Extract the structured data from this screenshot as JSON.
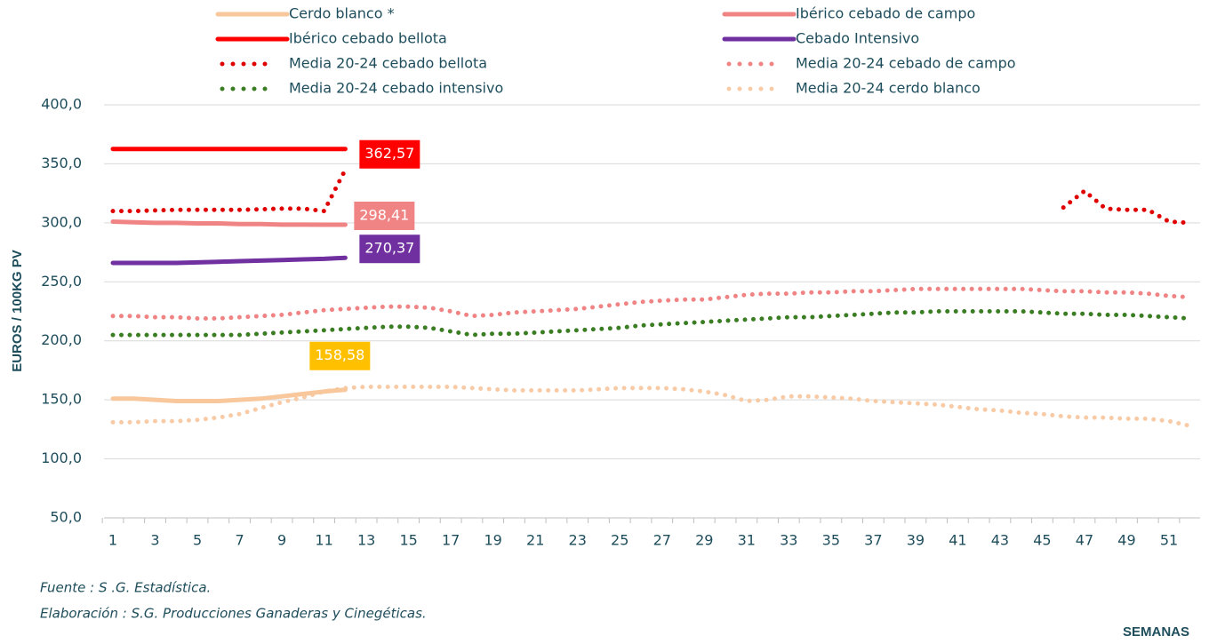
{
  "chart_data": {
    "type": "line",
    "y_label": "EUROS / 100KG PV",
    "x_label": "SEMANAS",
    "source": "Fuente :  S .G. Estadística.",
    "credit": "Elaboración : S.G. Producciones Ganaderas y Cinegéticas.",
    "categories": [
      1,
      null,
      3,
      null,
      5,
      null,
      7,
      null,
      9,
      null,
      11,
      null,
      13,
      null,
      15,
      null,
      17,
      null,
      19,
      null,
      21,
      null,
      23,
      null,
      25,
      null,
      27,
      null,
      29,
      null,
      31,
      null,
      33,
      null,
      35,
      null,
      37,
      null,
      39,
      null,
      41,
      null,
      43,
      null,
      45,
      null,
      47,
      null,
      49,
      null,
      51,
      null
    ],
    "ylim": [
      50,
      400
    ],
    "yticks": [
      {
        "value": 50,
        "label": "50,0"
      },
      {
        "value": 100,
        "label": "100,0"
      },
      {
        "value": 150,
        "label": "150,0"
      },
      {
        "value": 200,
        "label": "200,0"
      },
      {
        "value": 250,
        "label": "250,0"
      },
      {
        "value": 300,
        "label": "300,0"
      },
      {
        "value": 350,
        "label": "350,0"
      },
      {
        "value": 400,
        "label": "400,0"
      }
    ],
    "grid": true,
    "series": [
      {
        "name": "Cerdo blanco *",
        "color": "#f8c79c",
        "style": "solid",
        "label_color": "#ffc000",
        "values": [
          151,
          151,
          150,
          149,
          149,
          149,
          150,
          151,
          153,
          155,
          157,
          158.58,
          null,
          null,
          null,
          null,
          null,
          null,
          null,
          null,
          null,
          null,
          null,
          null,
          null,
          null,
          null,
          null,
          null,
          null,
          null,
          null,
          null,
          null,
          null,
          null,
          null,
          null,
          null,
          null,
          null,
          null,
          null,
          null,
          null,
          null,
          null,
          null,
          null,
          null,
          null,
          null
        ],
        "value_labels": [
          null,
          null,
          null,
          null,
          null,
          null,
          null,
          null,
          null,
          null,
          null,
          "158,58",
          null,
          null,
          null,
          null,
          null,
          null,
          null,
          null,
          null,
          null,
          null,
          null,
          null,
          null,
          null,
          null,
          null,
          null,
          null,
          null,
          null,
          null,
          null,
          null,
          null,
          null,
          null,
          null,
          null,
          null,
          null,
          null,
          null,
          null,
          null,
          null,
          null,
          null,
          null,
          null
        ]
      },
      {
        "name": "Ibérico cebado de campo",
        "color": "#f08484",
        "style": "solid",
        "label_color": "#f08484",
        "values": [
          301,
          300.5,
          300,
          300,
          299.5,
          299.5,
          299,
          299,
          298.5,
          298.5,
          298.4,
          298.41,
          null,
          null,
          null,
          null,
          null,
          null,
          null,
          null,
          null,
          null,
          null,
          null,
          null,
          null,
          null,
          null,
          null,
          null,
          null,
          null,
          null,
          null,
          null,
          null,
          null,
          null,
          null,
          null,
          null,
          null,
          null,
          null,
          null,
          null,
          null,
          null,
          null,
          null,
          null,
          null
        ],
        "value_labels": [
          null,
          null,
          null,
          null,
          null,
          null,
          null,
          null,
          null,
          null,
          null,
          "298,41",
          null,
          null,
          null,
          null,
          null,
          null,
          null,
          null,
          null,
          null,
          null,
          null,
          null,
          null,
          null,
          null,
          null,
          null,
          null,
          null,
          null,
          null,
          null,
          null,
          null,
          null,
          null,
          null,
          null,
          null,
          null,
          null,
          null,
          null,
          null,
          null,
          null,
          null,
          null,
          null
        ]
      },
      {
        "name": "Ibérico cebado bellota",
        "color": "#ff0000",
        "style": "solid",
        "label_color": "#ff0000",
        "values": [
          362.57,
          362.57,
          362.57,
          362.57,
          362.57,
          362.57,
          362.57,
          362.57,
          362.57,
          362.57,
          362.57,
          362.57,
          null,
          null,
          null,
          null,
          null,
          null,
          null,
          null,
          null,
          null,
          null,
          null,
          null,
          null,
          null,
          null,
          null,
          null,
          null,
          null,
          null,
          null,
          null,
          null,
          null,
          null,
          null,
          null,
          null,
          null,
          null,
          null,
          null,
          null,
          null,
          null,
          null,
          null,
          null,
          null
        ],
        "value_labels": [
          null,
          null,
          null,
          null,
          null,
          null,
          null,
          null,
          null,
          null,
          null,
          "362,57",
          null,
          null,
          null,
          null,
          null,
          null,
          null,
          null,
          null,
          null,
          null,
          null,
          null,
          null,
          null,
          null,
          null,
          null,
          null,
          null,
          null,
          null,
          null,
          null,
          null,
          null,
          null,
          null,
          null,
          null,
          null,
          null,
          null,
          null,
          null,
          null,
          null,
          null,
          null,
          null
        ]
      },
      {
        "name": "Cebado Intensivo",
        "color": "#7030a0",
        "style": "solid",
        "label_color": "#7030a0",
        "values": [
          266,
          266,
          266,
          266,
          266.5,
          267,
          267.5,
          268,
          268.5,
          269,
          269.5,
          270.37,
          null,
          null,
          null,
          null,
          null,
          null,
          null,
          null,
          null,
          null,
          null,
          null,
          null,
          null,
          null,
          null,
          null,
          null,
          null,
          null,
          null,
          null,
          null,
          null,
          null,
          null,
          null,
          null,
          null,
          null,
          null,
          null,
          null,
          null,
          null,
          null,
          null,
          null,
          null,
          null
        ],
        "value_labels": [
          null,
          null,
          null,
          null,
          null,
          null,
          null,
          null,
          null,
          null,
          null,
          "270,37",
          null,
          null,
          null,
          null,
          null,
          null,
          null,
          null,
          null,
          null,
          null,
          null,
          null,
          null,
          null,
          null,
          null,
          null,
          null,
          null,
          null,
          null,
          null,
          null,
          null,
          null,
          null,
          null,
          null,
          null,
          null,
          null,
          null,
          null,
          null,
          null,
          null,
          null,
          null,
          null
        ]
      },
      {
        "name": "Media 20-24 cebado bellota",
        "color": "#e00000",
        "style": "dotted",
        "values": [
          310,
          310,
          310.5,
          311,
          311,
          311,
          311,
          311.5,
          312,
          312,
          310,
          345,
          null,
          null,
          null,
          null,
          null,
          null,
          null,
          null,
          null,
          null,
          null,
          null,
          null,
          null,
          null,
          null,
          null,
          null,
          null,
          null,
          null,
          null,
          null,
          null,
          null,
          null,
          null,
          null,
          null,
          null,
          null,
          null,
          null,
          313,
          327,
          312,
          311,
          311,
          301,
          300
        ]
      },
      {
        "name": "Media 20-24 cebado de campo",
        "color": "#f08484",
        "style": "dotted",
        "values": [
          221,
          221,
          220,
          220,
          219,
          219,
          220,
          221,
          222,
          224,
          226,
          227,
          228,
          229,
          229,
          228,
          225,
          221,
          222,
          224,
          225,
          226,
          227,
          229,
          231,
          233,
          234,
          235,
          235,
          237,
          239,
          240,
          240,
          241,
          241,
          242,
          242,
          243,
          244,
          244,
          244,
          244,
          244,
          244,
          243,
          242,
          242,
          241,
          241,
          240,
          238,
          237
        ]
      },
      {
        "name": "Media 20-24 cebado intensivo",
        "color": "#3a7d22",
        "style": "dotted",
        "values": [
          205,
          205,
          205,
          205,
          205,
          205,
          205,
          206,
          207,
          208,
          209,
          210,
          211,
          212,
          212,
          211,
          208,
          205,
          206,
          206,
          207,
          208,
          209,
          210,
          211,
          213,
          214,
          215,
          216,
          217,
          218,
          219,
          220,
          220,
          221,
          222,
          223,
          224,
          224,
          225,
          225,
          225,
          225,
          225,
          224,
          223,
          223,
          222,
          222,
          221,
          220,
          219
        ]
      },
      {
        "name": "Media 20-24 cerdo blanco",
        "color": "#f8cba6",
        "style": "dotted",
        "values": [
          131,
          131,
          132,
          132,
          133,
          135,
          138,
          143,
          148,
          152,
          157,
          160,
          161,
          161,
          161,
          161,
          161,
          160,
          159,
          158,
          158,
          158,
          158,
          159,
          160,
          160,
          160,
          159,
          157,
          154,
          149,
          150,
          153,
          153,
          152,
          151,
          149,
          148,
          147,
          146,
          144,
          142,
          141,
          139,
          138,
          136,
          135,
          135,
          134,
          134,
          132,
          128
        ]
      }
    ]
  }
}
